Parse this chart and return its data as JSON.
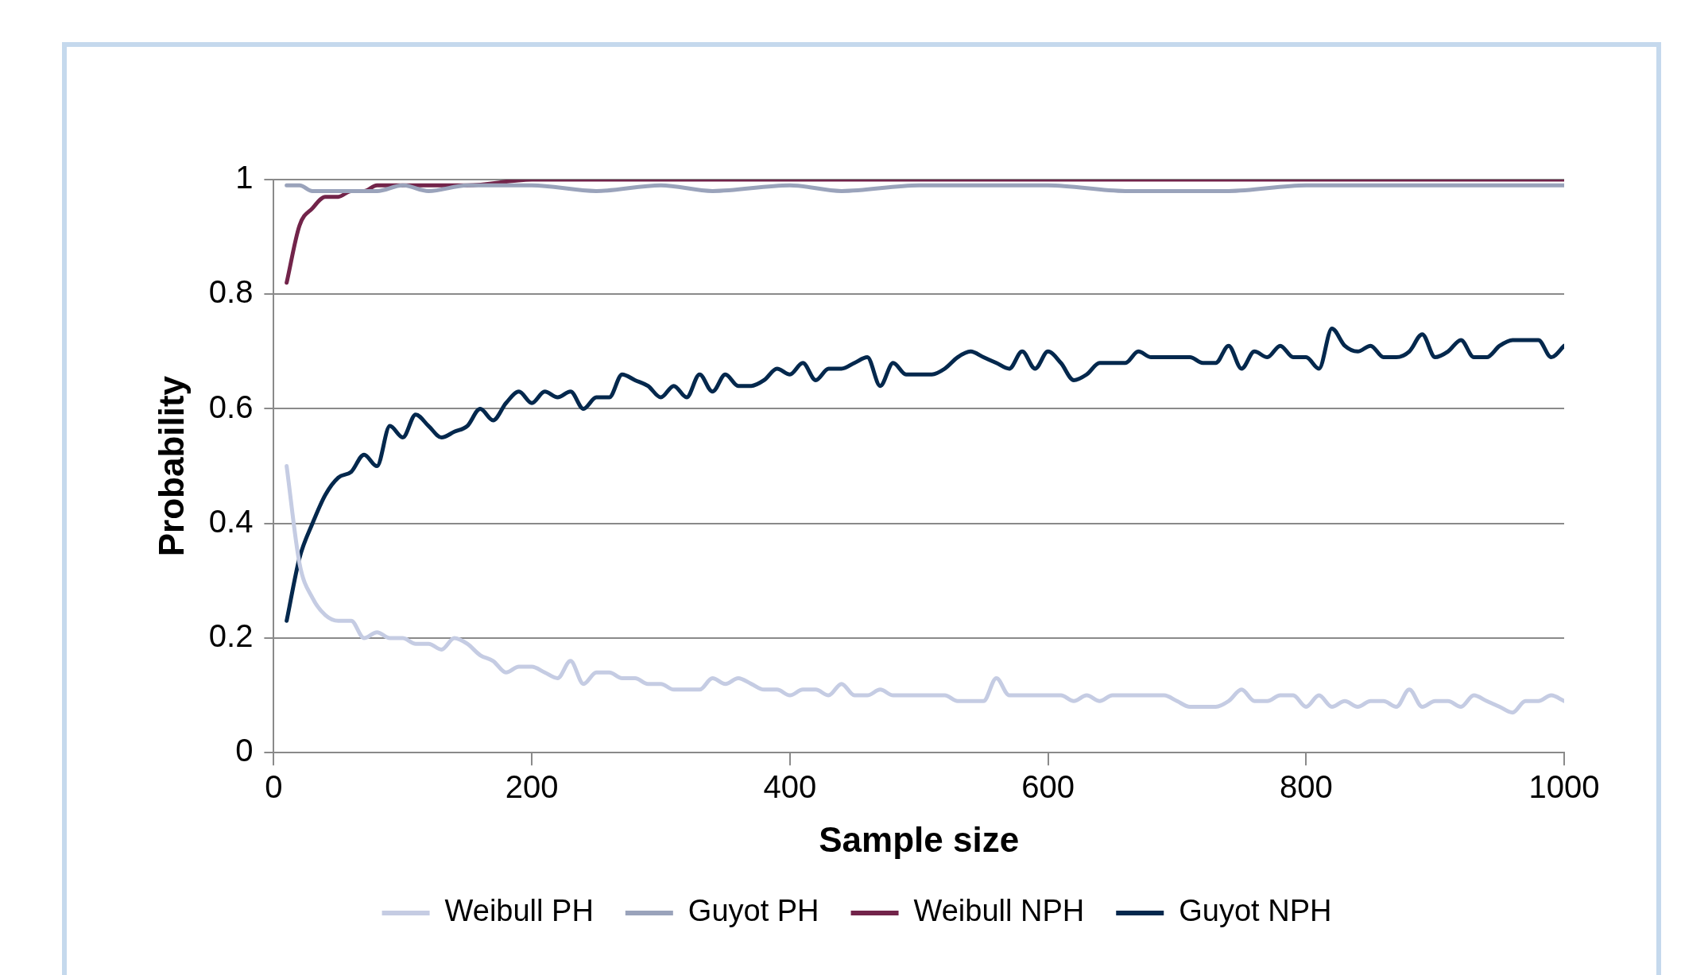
{
  "chart_data": {
    "type": "line",
    "xlabel": "Sample size",
    "ylabel": "Probability",
    "xlim": [
      0,
      1000
    ],
    "xticks": [
      0,
      200,
      400,
      600,
      800,
      1000
    ],
    "ylim": [
      0,
      1
    ],
    "yticks": [
      0,
      0.2,
      0.4,
      0.6,
      0.8,
      1
    ],
    "grid": "y",
    "legend": "bottom",
    "marker": "none",
    "line_style": "solid",
    "x": [
      10,
      20,
      30,
      40,
      50,
      60,
      70,
      80,
      90,
      100,
      110,
      120,
      130,
      140,
      150,
      160,
      170,
      180,
      190,
      200,
      210,
      220,
      230,
      240,
      250,
      260,
      270,
      280,
      290,
      300,
      310,
      320,
      330,
      340,
      350,
      360,
      370,
      380,
      390,
      400,
      410,
      420,
      430,
      440,
      450,
      460,
      470,
      480,
      490,
      500,
      510,
      520,
      530,
      540,
      550,
      560,
      570,
      580,
      590,
      600,
      610,
      620,
      630,
      640,
      650,
      660,
      670,
      680,
      690,
      700,
      710,
      720,
      730,
      740,
      750,
      760,
      770,
      780,
      790,
      800,
      810,
      820,
      830,
      840,
      850,
      860,
      870,
      880,
      890,
      900,
      910,
      920,
      930,
      940,
      950,
      960,
      970,
      980,
      990,
      1000
    ],
    "series": [
      {
        "name": "Weibull PH",
        "color": "#c5cce3",
        "values": [
          0.5,
          0.33,
          0.27,
          0.24,
          0.23,
          0.23,
          0.2,
          0.21,
          0.2,
          0.2,
          0.19,
          0.19,
          0.18,
          0.2,
          0.19,
          0.17,
          0.16,
          0.14,
          0.15,
          0.15,
          0.14,
          0.13,
          0.16,
          0.12,
          0.14,
          0.14,
          0.13,
          0.13,
          0.12,
          0.12,
          0.11,
          0.11,
          0.11,
          0.13,
          0.12,
          0.13,
          0.12,
          0.11,
          0.11,
          0.1,
          0.11,
          0.11,
          0.1,
          0.12,
          0.1,
          0.1,
          0.11,
          0.1,
          0.1,
          0.1,
          0.1,
          0.1,
          0.09,
          0.09,
          0.09,
          0.13,
          0.1,
          0.1,
          0.1,
          0.1,
          0.1,
          0.09,
          0.1,
          0.09,
          0.1,
          0.1,
          0.1,
          0.1,
          0.1,
          0.09,
          0.08,
          0.08,
          0.08,
          0.09,
          0.11,
          0.09,
          0.09,
          0.1,
          0.1,
          0.08,
          0.1,
          0.08,
          0.09,
          0.08,
          0.09,
          0.09,
          0.08,
          0.11,
          0.08,
          0.09,
          0.09,
          0.08,
          0.1,
          0.09,
          0.08,
          0.07,
          0.09,
          0.09,
          0.1,
          0.09
        ]
      },
      {
        "name": "Guyot PH",
        "color": "#9aa3bb",
        "x": [
          10,
          20,
          30,
          40,
          60,
          80,
          100,
          120,
          150,
          200,
          250,
          300,
          340,
          400,
          440,
          500,
          550,
          600,
          660,
          700,
          740,
          800,
          850,
          900,
          950,
          1000
        ],
        "values": [
          0.99,
          0.99,
          0.98,
          0.98,
          0.98,
          0.98,
          0.99,
          0.98,
          0.99,
          0.99,
          0.98,
          0.99,
          0.98,
          0.99,
          0.98,
          0.99,
          0.99,
          0.99,
          0.98,
          0.98,
          0.98,
          0.99,
          0.99,
          0.99,
          0.99,
          0.99
        ]
      },
      {
        "name": "Weibull NPH",
        "color": "#72244a",
        "x": [
          10,
          20,
          30,
          40,
          50,
          60,
          70,
          80,
          100,
          120,
          150,
          200,
          300,
          400,
          500,
          600,
          700,
          800,
          900,
          1000
        ],
        "values": [
          0.82,
          0.92,
          0.95,
          0.97,
          0.97,
          0.98,
          0.98,
          0.99,
          0.99,
          0.99,
          0.99,
          1,
          1,
          1,
          1,
          1,
          1,
          1,
          1,
          1
        ]
      },
      {
        "name": "Guyot NPH",
        "color": "#04284d",
        "values": [
          0.23,
          0.34,
          0.4,
          0.45,
          0.48,
          0.49,
          0.52,
          0.5,
          0.57,
          0.55,
          0.59,
          0.57,
          0.55,
          0.56,
          0.57,
          0.6,
          0.58,
          0.61,
          0.63,
          0.61,
          0.63,
          0.62,
          0.63,
          0.6,
          0.62,
          0.62,
          0.66,
          0.65,
          0.64,
          0.62,
          0.64,
          0.62,
          0.66,
          0.63,
          0.66,
          0.64,
          0.64,
          0.65,
          0.67,
          0.66,
          0.68,
          0.65,
          0.67,
          0.67,
          0.68,
          0.69,
          0.64,
          0.68,
          0.66,
          0.66,
          0.66,
          0.67,
          0.69,
          0.7,
          0.69,
          0.68,
          0.67,
          0.7,
          0.67,
          0.7,
          0.68,
          0.65,
          0.66,
          0.68,
          0.68,
          0.68,
          0.7,
          0.69,
          0.69,
          0.69,
          0.69,
          0.68,
          0.68,
          0.71,
          0.67,
          0.7,
          0.69,
          0.71,
          0.69,
          0.69,
          0.67,
          0.74,
          0.71,
          0.7,
          0.71,
          0.69,
          0.69,
          0.7,
          0.73,
          0.69,
          0.7,
          0.72,
          0.69,
          0.69,
          0.71,
          0.72,
          0.72,
          0.72,
          0.69,
          0.71
        ]
      }
    ]
  }
}
